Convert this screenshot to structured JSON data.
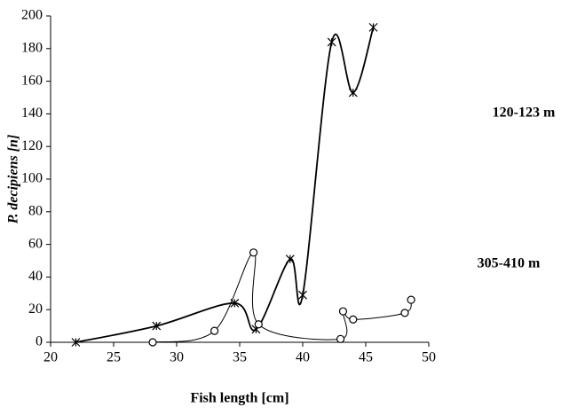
{
  "chart_data": {
    "type": "line",
    "xlabel": "Fish length [cm]",
    "ylabel": "P. decipiens [n]",
    "xlim": [
      20,
      50
    ],
    "xticks": [
      20,
      25,
      30,
      35,
      40,
      45,
      50
    ],
    "ylim": [
      0,
      200
    ],
    "yticks": [
      0,
      20,
      40,
      60,
      80,
      100,
      120,
      140,
      160,
      180,
      200
    ],
    "grid": false,
    "smooth": true,
    "series": [
      {
        "name": "120-123 m",
        "color": "#000000",
        "marker": "asterisk",
        "x": [
          22,
          28.4,
          34.6,
          36.3,
          39,
          40,
          42.3,
          44,
          45.6
        ],
        "values": [
          0,
          10,
          24,
          8,
          51,
          29,
          184,
          153,
          193
        ]
      },
      {
        "name": "305-410 m",
        "color": "#000000",
        "marker": "circle",
        "x": [
          28.1,
          33,
          36.1,
          36.5,
          43,
          43.2,
          44,
          48.1,
          48.6
        ],
        "values": [
          0,
          7,
          55,
          11,
          2,
          19,
          14,
          18,
          26
        ]
      }
    ]
  }
}
